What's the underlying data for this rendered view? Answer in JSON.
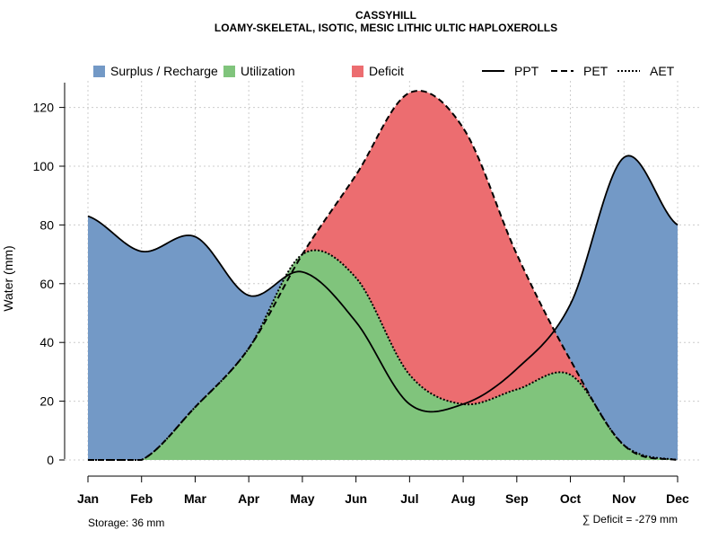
{
  "chart_data": {
    "type": "area",
    "title": "CASSYHILL",
    "subtitle": "LOAMY-SKELETAL, ISOTIC, MESIC LITHIC ULTIC HAPLOXEROLLS",
    "ylabel": "Water (mm)",
    "xlabel": "",
    "ylim": [
      0,
      130
    ],
    "yticks": [
      0,
      20,
      40,
      60,
      80,
      100,
      120
    ],
    "grid": true,
    "categories": [
      "Jan",
      "Feb",
      "Mar",
      "Apr",
      "May",
      "Jun",
      "Jul",
      "Aug",
      "Sep",
      "Oct",
      "Nov",
      "Dec"
    ],
    "series": [
      {
        "name": "PPT",
        "style": "solid",
        "values": [
          83,
          71,
          76,
          56,
          64,
          47,
          19,
          19,
          31,
          53,
          103,
          80
        ]
      },
      {
        "name": "PET",
        "style": "dashed",
        "values": [
          0,
          0,
          18,
          38,
          70,
          97,
          125,
          113,
          70,
          34,
          5,
          0
        ]
      },
      {
        "name": "AET",
        "style": "dotted",
        "values": [
          0,
          0,
          18,
          38,
          70,
          62,
          29,
          19,
          24,
          29,
          5,
          0
        ]
      }
    ],
    "legend": [
      {
        "label": "Surplus / Recharge",
        "color": "#7399C6"
      },
      {
        "label": "Utilization",
        "color": "#80C47C"
      },
      {
        "label": "Deficit",
        "color": "#EC6D70"
      },
      {
        "label": "PPT",
        "line": "solid"
      },
      {
        "label": "PET",
        "line": "dashed"
      },
      {
        "label": "AET",
        "line": "dotted"
      }
    ],
    "legend_position": "top",
    "footnotes": {
      "storage": "Storage: 36 mm",
      "deficit": "∑ Deficit = -279 mm"
    }
  }
}
